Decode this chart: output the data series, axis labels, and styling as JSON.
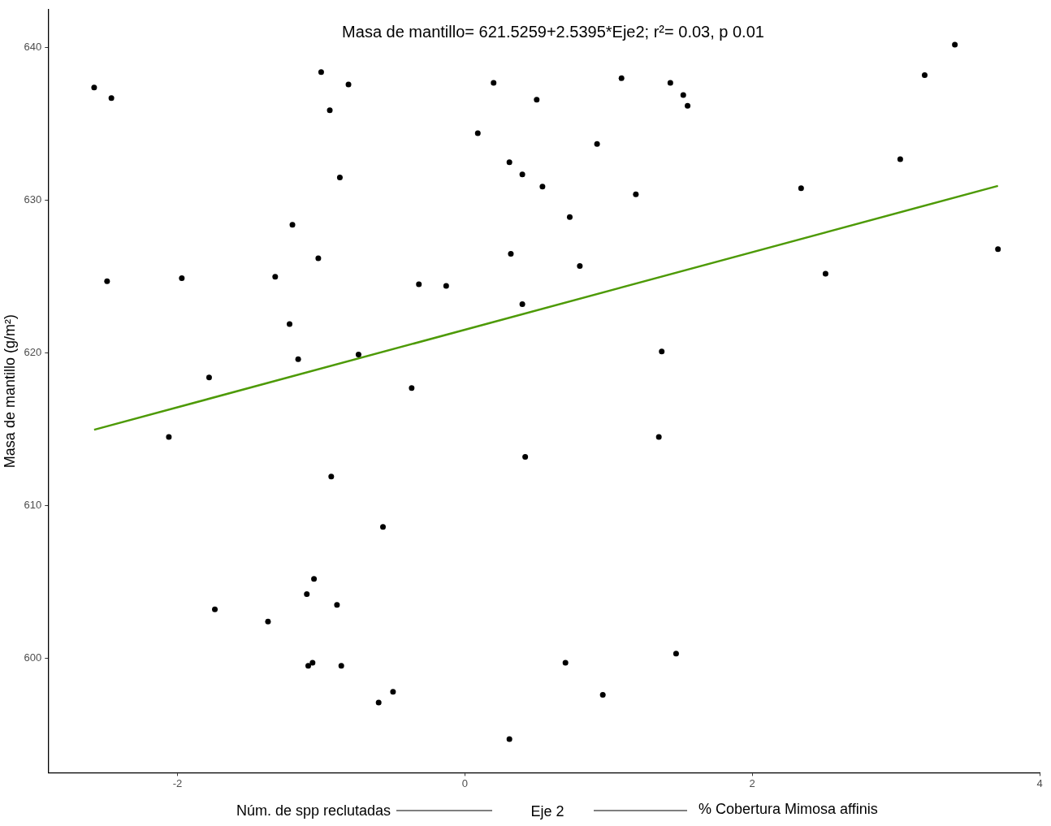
{
  "chart_data": {
    "type": "scatter",
    "title": "Masa de mantillo= 621.5259+2.5395*Eje2; r²= 0.03, p 0.01",
    "xlabel": "Eje 2",
    "ylabel": "Masa de mantillo (g/m²)",
    "annotations": [
      "Núm. de spp reclutadas",
      "% Cobertura Mimosa affinis"
    ],
    "xlim": [
      -2.9,
      4.0
    ],
    "xticks": [
      -2,
      0,
      2,
      4
    ],
    "ylim": [
      592.5,
      642.5
    ],
    "yticks": [
      600,
      610,
      620,
      630,
      640
    ],
    "grid": false,
    "legend": false,
    "marker": "circle",
    "series": [
      {
        "color": "#000000",
        "x": [
          -2.58,
          -2.46,
          -2.49,
          -1.97,
          -2.06,
          -1.78,
          -1.74,
          -1.37,
          -1.32,
          -1.2,
          -1.22,
          -1.16,
          -1.1,
          -1.05,
          -1.09,
          -1.06,
          -1.02,
          -1.0,
          -0.94,
          -0.93,
          -0.89,
          -0.87,
          -0.86,
          -0.81,
          -0.74,
          -0.57,
          -0.6,
          -0.5,
          -0.37,
          -0.32,
          -0.13,
          0.09,
          0.2,
          0.31,
          0.32,
          0.31,
          0.4,
          0.4,
          0.42,
          0.5,
          0.54,
          0.73,
          0.7,
          0.8,
          0.92,
          0.96,
          1.09,
          1.19,
          1.37,
          1.35,
          1.43,
          1.52,
          1.55,
          1.47,
          2.34,
          2.51,
          3.03,
          3.2,
          3.41,
          3.71
        ],
        "values": [
          637.4,
          636.7,
          624.7,
          624.9,
          614.5,
          618.4,
          603.2,
          602.4,
          625.0,
          628.4,
          621.9,
          619.6,
          604.2,
          605.2,
          599.5,
          599.7,
          626.2,
          638.4,
          635.9,
          611.9,
          603.5,
          631.5,
          599.5,
          637.6,
          619.9,
          608.6,
          597.1,
          597.8,
          617.7,
          624.5,
          624.4,
          634.4,
          637.7,
          632.5,
          626.5,
          594.7,
          631.7,
          623.2,
          613.2,
          636.6,
          630.9,
          628.9,
          599.7,
          625.7,
          633.7,
          597.6,
          638.0,
          630.4,
          620.1,
          614.5,
          637.7,
          636.9,
          636.2,
          600.3,
          630.8,
          625.2,
          632.7,
          638.2,
          640.2,
          626.8
        ]
      },
      {
        "type": "line",
        "color": "#4d9a06",
        "marker": "none",
        "x": [
          -2.58,
          3.71
        ],
        "values": [
          614.97,
          630.95
        ]
      }
    ]
  }
}
